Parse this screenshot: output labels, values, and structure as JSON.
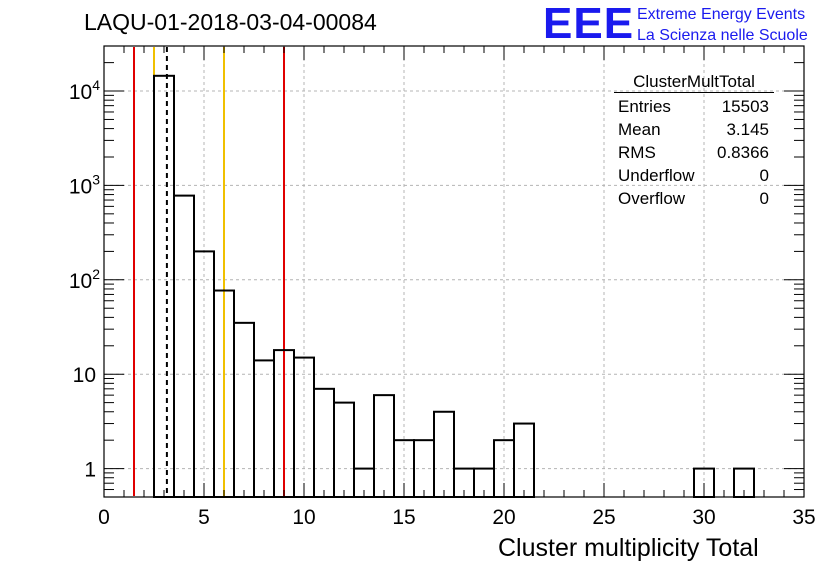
{
  "chart_data": {
    "type": "bar",
    "title": "LAQU-01-2018-03-04-00084",
    "xlabel": "Cluster multiplicity Total",
    "ylabel": "",
    "xlim": [
      0,
      35
    ],
    "ylim": [
      0.5,
      30000
    ],
    "yscale": "log",
    "bin_width": 1,
    "bin_edges": [
      2.5,
      3.5,
      4.5,
      5.5,
      6.5,
      7.5,
      8.5,
      9.5,
      10.5,
      11.5,
      12.5,
      13.5,
      14.5,
      15.5,
      16.5,
      17.5,
      18.5,
      19.5,
      20.5,
      21.5,
      29.5,
      30.5,
      31.5,
      32.5
    ],
    "bins": [
      {
        "x": 3,
        "value": 14500
      },
      {
        "x": 4,
        "value": 780
      },
      {
        "x": 5,
        "value": 200
      },
      {
        "x": 6,
        "value": 77
      },
      {
        "x": 7,
        "value": 35
      },
      {
        "x": 8,
        "value": 14
      },
      {
        "x": 9,
        "value": 18
      },
      {
        "x": 10,
        "value": 15
      },
      {
        "x": 11,
        "value": 7
      },
      {
        "x": 12,
        "value": 5
      },
      {
        "x": 13,
        "value": 1
      },
      {
        "x": 14,
        "value": 6
      },
      {
        "x": 15,
        "value": 2
      },
      {
        "x": 16,
        "value": 2
      },
      {
        "x": 17,
        "value": 4
      },
      {
        "x": 18,
        "value": 1
      },
      {
        "x": 19,
        "value": 1
      },
      {
        "x": 20,
        "value": 2
      },
      {
        "x": 21,
        "value": 3
      },
      {
        "x": 30,
        "value": 1
      },
      {
        "x": 32,
        "value": 1
      }
    ],
    "x_ticks": [
      0,
      5,
      10,
      15,
      20,
      25,
      30,
      35
    ],
    "x_tick_labels": [
      "0",
      "5",
      "10",
      "15",
      "20",
      "25",
      "30",
      "35"
    ],
    "y_ticks": [
      1,
      10,
      100,
      1000,
      10000
    ],
    "y_tick_labels": [
      {
        "base": "1",
        "exp": ""
      },
      {
        "base": "10",
        "exp": ""
      },
      {
        "base": "10",
        "exp": "2"
      },
      {
        "base": "10",
        "exp": "3"
      },
      {
        "base": "10",
        "exp": "4"
      }
    ],
    "vertical_lines": [
      {
        "x": 1.5,
        "color": "#e00000",
        "style": "solid"
      },
      {
        "x": 2.5,
        "color": "#f0c000",
        "style": "solid"
      },
      {
        "x": 3.145,
        "color": "#000000",
        "style": "dashed"
      },
      {
        "x": 6.0,
        "color": "#f0c000",
        "style": "solid"
      },
      {
        "x": 9.0,
        "color": "#e00000",
        "style": "solid"
      }
    ],
    "grid": true
  },
  "logo": {
    "letters": "EEE",
    "line1": "Extreme Energy Events",
    "line2": "La Scienza nelle Scuole",
    "color": "#1a1aee"
  },
  "stats_box": {
    "title": "ClusterMultTotal",
    "rows": [
      {
        "label": "Entries",
        "value": "15503"
      },
      {
        "label": "Mean",
        "value": "3.145"
      },
      {
        "label": "RMS",
        "value": "0.8366"
      },
      {
        "label": "Underflow",
        "value": "0"
      },
      {
        "label": "Overflow",
        "value": "0"
      }
    ]
  }
}
